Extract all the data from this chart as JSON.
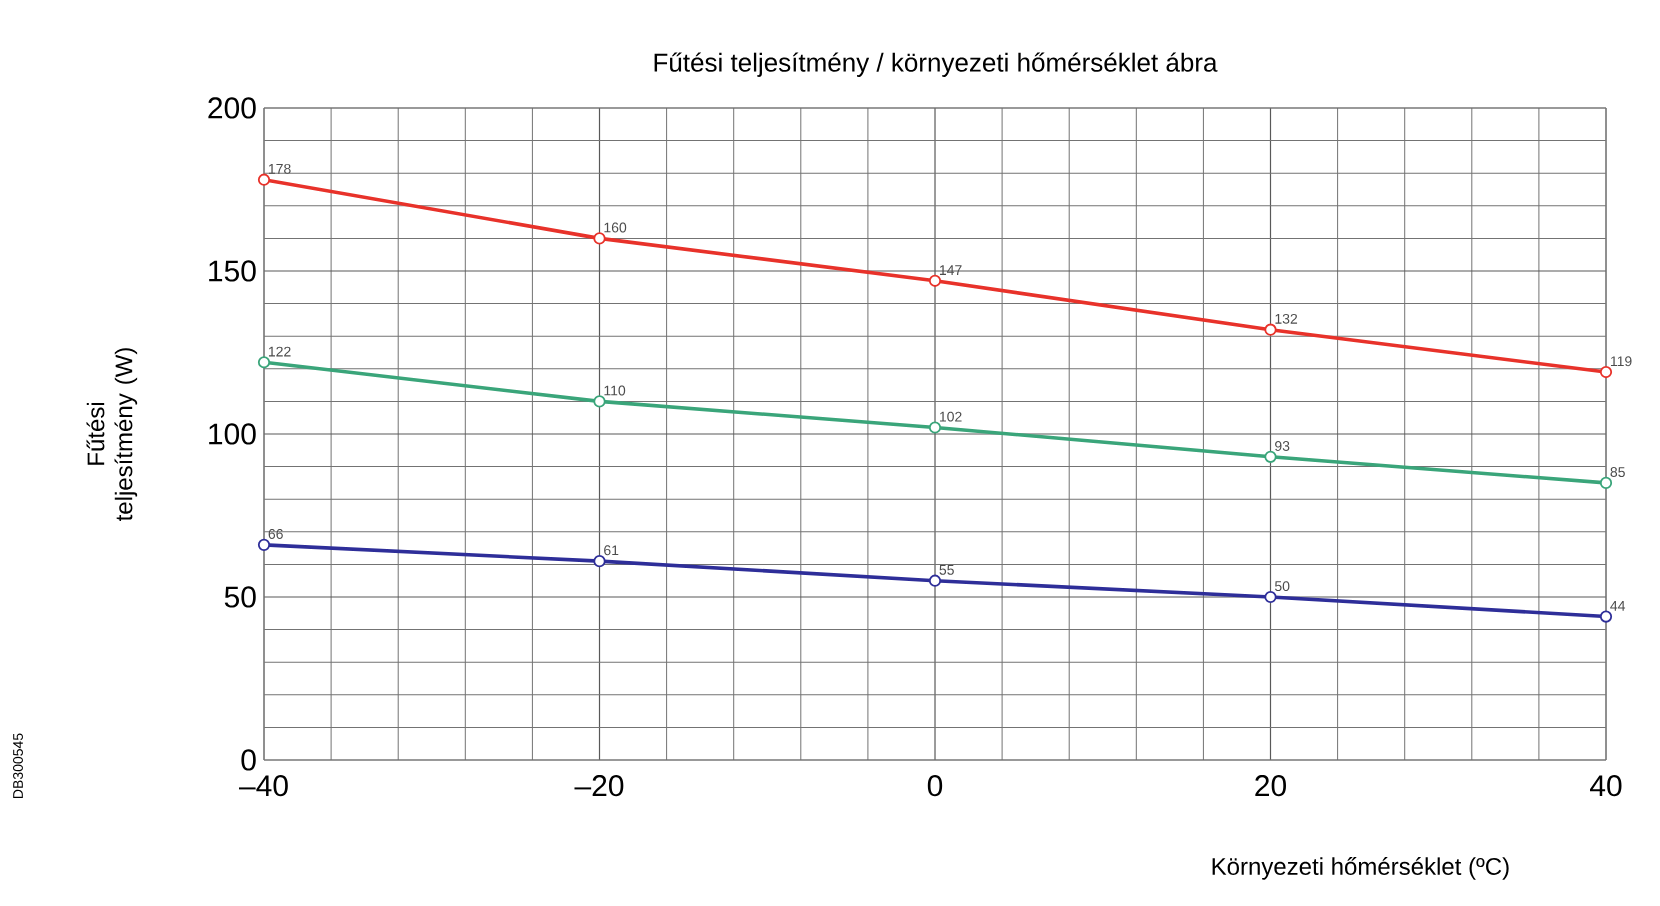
{
  "chart_data": {
    "type": "line",
    "title": "Fűtési teljesítmény / környezeti hőmérséklet ábra",
    "xlabel": "Környezeti hőmérséklet (ºC)",
    "ylabel": "Fűtési teljesítmény (W)",
    "annotations": [
      "DB300545"
    ],
    "x": [
      -40,
      -20,
      0,
      20,
      40
    ],
    "series": [
      {
        "color": "#e8322a",
        "values": [
          178,
          160,
          147,
          132,
          119
        ]
      },
      {
        "color": "#3aa57a",
        "values": [
          122,
          110,
          102,
          93,
          85
        ]
      },
      {
        "color": "#2e2e99",
        "values": [
          66,
          61,
          55,
          50,
          44
        ]
      }
    ],
    "xlim": [
      -40,
      40
    ],
    "ylim": [
      0,
      200
    ],
    "xticks": [
      {
        "value": -40,
        "label": "–40"
      },
      {
        "value": -20,
        "label": "–20"
      },
      0,
      20,
      40
    ],
    "yticks": [
      0,
      50,
      100,
      150,
      200
    ],
    "grid": true,
    "marker": "circle",
    "line_style": "solid",
    "data_labels": true
  }
}
